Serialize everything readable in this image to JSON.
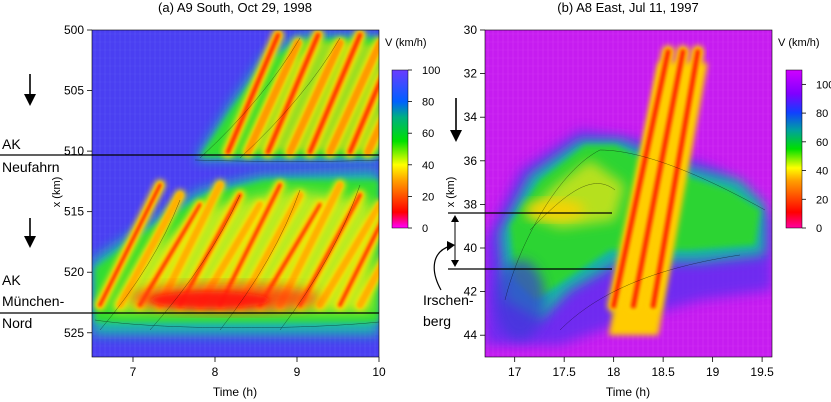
{
  "chart_data": [
    {
      "type": "heatmap",
      "title": "(a) A9 South, Oct 29, 1998",
      "xlabel": "Time (h)",
      "ylabel": "x (km)",
      "xlim": [
        6.5,
        10
      ],
      "ylim": [
        500,
        527
      ],
      "x_ticks": [
        7,
        8,
        9,
        10
      ],
      "y_ticks": [
        500,
        505,
        510,
        515,
        520,
        525
      ],
      "colorbar": {
        "label": "V (km/h)",
        "ticks": [
          0,
          20,
          40,
          60,
          80,
          100
        ],
        "range": [
          0,
          100
        ]
      },
      "background_speed": 90,
      "jam_regions": [
        {
          "name": "upper",
          "x_start": 7.6,
          "x_end": 10,
          "y_top": 500,
          "y_bottom": 510
        },
        {
          "name": "lower",
          "x_start": 6.5,
          "x_end": 10,
          "y_top": 512.5,
          "y_bottom": 525
        }
      ],
      "bottlenecks": [
        {
          "label_line1": "AK",
          "label_line2": "Neufahrn",
          "x_km": 510
        },
        {
          "label_line1": "AK",
          "label_line2": "München-",
          "label_line3": "Nord",
          "x_km": 525
        }
      ],
      "arrows": [
        "down",
        "down"
      ]
    },
    {
      "type": "heatmap",
      "title": "(b) A8 East, Jul 11, 1997",
      "xlabel": "Time (h)",
      "ylabel": "x (km)",
      "xlim": [
        16.7,
        19.6
      ],
      "ylim": [
        30,
        45
      ],
      "x_ticks": [
        17,
        17.5,
        18,
        18.5,
        19,
        19.5
      ],
      "x_tick_labels": [
        "17",
        "17.5",
        "18",
        "18.5",
        "19",
        "19.5"
      ],
      "y_ticks": [
        30,
        32,
        34,
        36,
        38,
        40,
        42,
        44
      ],
      "colorbar": {
        "label": "V (km/h)",
        "ticks": [
          0,
          20,
          40,
          60,
          80,
          100
        ],
        "range": [
          0,
          110
        ]
      },
      "background_speed": 105,
      "jam_regions": [
        {
          "name": "main",
          "x_start": 16.9,
          "x_end": 19.4,
          "y_top": 34.5,
          "y_bottom": 44
        }
      ],
      "waves": [
        {
          "x_start": 18.0,
          "y_start": 41.5,
          "x_end": 18.55,
          "y_end": 31.0
        },
        {
          "x_start": 18.2,
          "y_start": 41.5,
          "x_end": 18.7,
          "y_end": 31.0
        },
        {
          "x_start": 18.4,
          "y_start": 41.5,
          "x_end": 18.85,
          "y_end": 31.0
        }
      ],
      "region_marker": {
        "top_km": 38.7,
        "bottom_km": 41.6,
        "x_end": 18.05
      },
      "bottleneck_label": [
        "Irschen-",
        "berg"
      ],
      "arrows": [
        "down"
      ]
    }
  ]
}
